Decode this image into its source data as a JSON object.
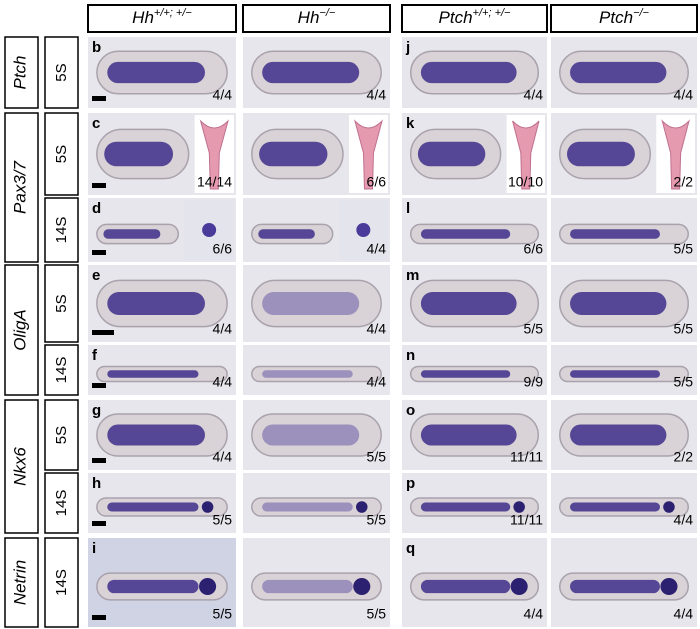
{
  "columns": [
    {
      "base": "Hh",
      "sup": "+/+; +/−"
    },
    {
      "base": "Hh",
      "sup": "−/−"
    },
    {
      "base": "Ptch",
      "sup": "+/+; +/−"
    },
    {
      "base": "Ptch",
      "sup": "−/−"
    }
  ],
  "genes": [
    {
      "name": "Ptch",
      "rows": [
        {
          "stage": "5S",
          "cells": [
            {
              "label": "b",
              "count": "4/4"
            },
            {
              "count": "4/4"
            },
            {
              "label": "j",
              "count": "4/4"
            },
            {
              "count": "4/4"
            }
          ]
        }
      ]
    },
    {
      "name": "Pax3/7",
      "rows": [
        {
          "stage": "5S",
          "cells": [
            {
              "label": "c",
              "count": "14/14"
            },
            {
              "count": "6/6"
            },
            {
              "label": "k",
              "count": "10/10"
            },
            {
              "count": "2/2"
            }
          ]
        },
        {
          "stage": "14S",
          "cells": [
            {
              "label": "d",
              "count": "6/6"
            },
            {
              "count": "4/4"
            },
            {
              "label": "l",
              "count": "6/6"
            },
            {
              "count": "5/5"
            }
          ]
        }
      ]
    },
    {
      "name": "OligA",
      "rows": [
        {
          "stage": "5S",
          "cells": [
            {
              "label": "e",
              "count": "4/4"
            },
            {
              "count": "4/4"
            },
            {
              "label": "m",
              "count": "5/5"
            },
            {
              "count": "5/5"
            }
          ]
        },
        {
          "stage": "14S",
          "cells": [
            {
              "label": "f",
              "count": "4/4"
            },
            {
              "count": "4/4"
            },
            {
              "label": "n",
              "count": "9/9"
            },
            {
              "count": "5/5"
            }
          ]
        }
      ]
    },
    {
      "name": "Nkx6",
      "rows": [
        {
          "stage": "5S",
          "cells": [
            {
              "label": "g",
              "count": "4/4"
            },
            {
              "count": "5/5"
            },
            {
              "label": "o",
              "count": "11/11"
            },
            {
              "count": "2/2"
            }
          ]
        },
        {
          "stage": "14S",
          "cells": [
            {
              "label": "h",
              "count": "5/5"
            },
            {
              "count": "5/5"
            },
            {
              "label": "p",
              "count": "11/11"
            },
            {
              "count": "4/4"
            }
          ]
        }
      ]
    },
    {
      "name": "Netrin",
      "rows": [
        {
          "stage": "14S",
          "cells": [
            {
              "label": "i",
              "count": "5/5"
            },
            {
              "count": "5/5"
            },
            {
              "label": "q",
              "count": "4/4"
            },
            {
              "count": "4/4"
            }
          ]
        }
      ]
    }
  ]
}
